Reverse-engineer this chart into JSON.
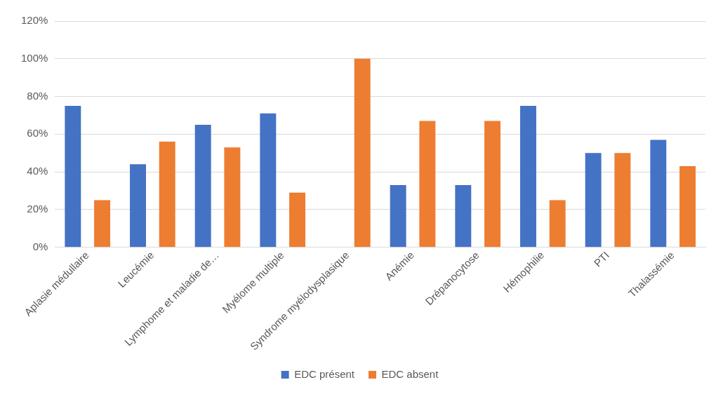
{
  "chart_data": {
    "type": "bar",
    "categories": [
      "Aplasie médullaire",
      "Leucémie",
      "Lymphome et maladie de…",
      "Myélome multiple",
      "Syndrome myélodysplasique",
      "Anémie",
      "Drépanocytose",
      "Hémophilie",
      "PTI",
      "Thalassémie"
    ],
    "series": [
      {
        "name": "EDC présent",
        "color": "#4472c4",
        "values": [
          75,
          44,
          65,
          71,
          0,
          33,
          33,
          75,
          50,
          57
        ]
      },
      {
        "name": "EDC absent",
        "color": "#ed7d31",
        "values": [
          25,
          56,
          53,
          29,
          100,
          67,
          67,
          25,
          50,
          43
        ]
      }
    ],
    "ylim": [
      0,
      120
    ],
    "yticks": [
      {
        "value": 0,
        "label": "0%"
      },
      {
        "value": 20,
        "label": "20%"
      },
      {
        "value": 40,
        "label": "40%"
      },
      {
        "value": 60,
        "label": "60%"
      },
      {
        "value": 80,
        "label": "80%"
      },
      {
        "value": 100,
        "label": "100%"
      },
      {
        "value": 120,
        "label": "120%"
      }
    ],
    "grid": "y",
    "legend": "bottom"
  }
}
